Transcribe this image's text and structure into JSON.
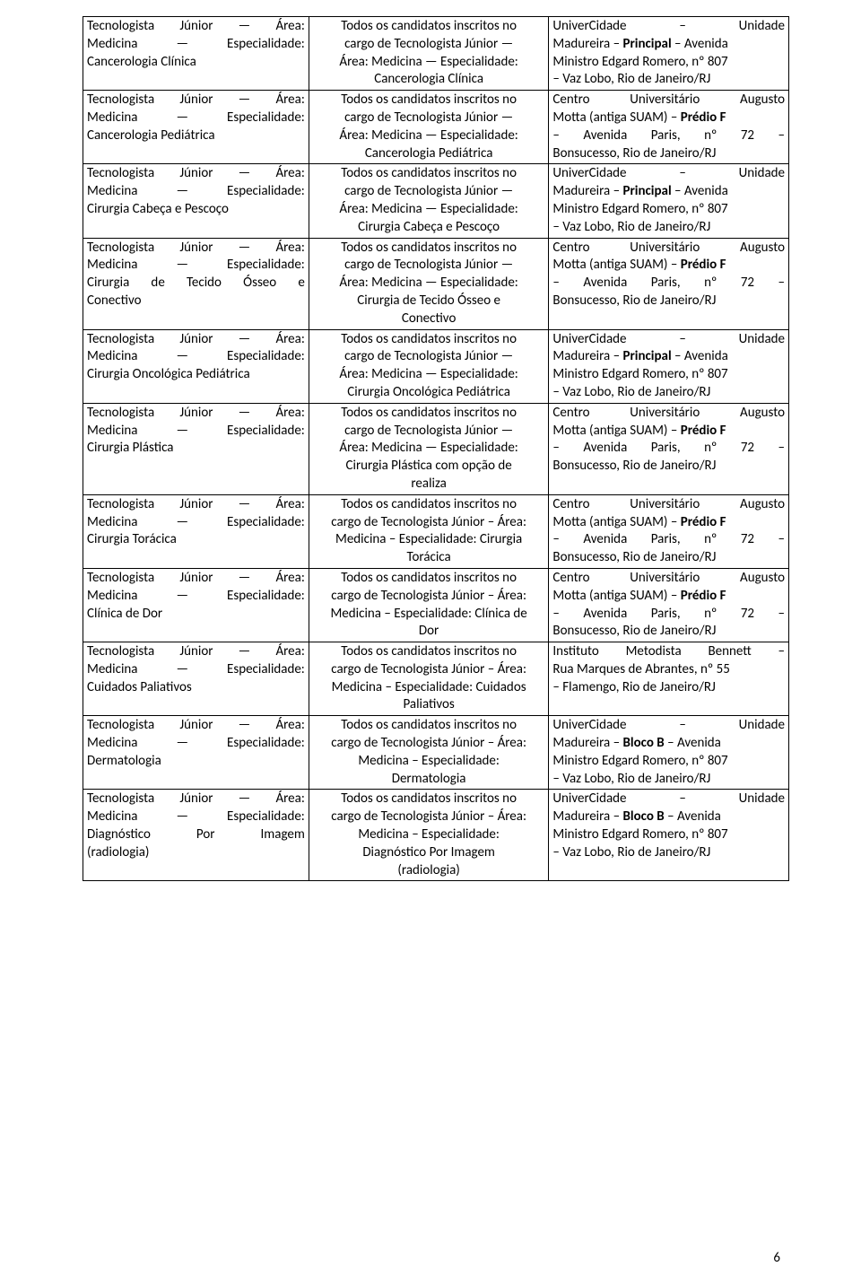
{
  "page_number": "6",
  "rows": [
    {
      "col1": [
        {
          "text": "Tecnologista Júnior — Área:",
          "just": true
        },
        {
          "text": "Medicina — Especialidade:",
          "just": true
        },
        {
          "text": "Cancerologia Clínica"
        }
      ],
      "col2": [
        {
          "text": "Todos os candidatos inscritos no"
        },
        {
          "text": "cargo de Tecnologista Júnior —"
        },
        {
          "text": "Área: Medicina — Especialidade:"
        },
        {
          "text": "Cancerologia Clínica"
        }
      ],
      "col3": [
        {
          "html": "UniverCidade&nbsp;&nbsp;&nbsp;&nbsp;&nbsp;&nbsp;&nbsp;–&nbsp;&nbsp;&nbsp;&nbsp;&nbsp;&nbsp;&nbsp;Unidade",
          "just": true
        },
        {
          "html": "Madureira – <b>Principal</b> – Avenida"
        },
        {
          "text": "Ministro Edgard Romero, nº 807"
        },
        {
          "text": "– Vaz Lobo, Rio de Janeiro/RJ"
        }
      ]
    },
    {
      "col1": [
        {
          "text": "Tecnologista Júnior — Área:",
          "just": true
        },
        {
          "text": "Medicina — Especialidade:",
          "just": true
        },
        {
          "text": "Cancerologia Pediátrica"
        }
      ],
      "col2": [
        {
          "text": "Todos os candidatos inscritos no"
        },
        {
          "text": "cargo de Tecnologista Júnior —"
        },
        {
          "text": "Área: Medicina — Especialidade:"
        },
        {
          "text": "Cancerologia Pediátrica"
        }
      ],
      "col3": [
        {
          "text": "Centro   Universitário   Augusto",
          "just": true
        },
        {
          "html": "Motta (antiga SUAM) – <b>Prédio F</b>"
        },
        {
          "text": "–   Avenida   Paris,   nº   72   –",
          "just": true
        },
        {
          "text": "Bonsucesso, Rio de Janeiro/RJ"
        }
      ]
    },
    {
      "col1": [
        {
          "text": "Tecnologista Júnior — Área:",
          "just": true
        },
        {
          "text": "Medicina — Especialidade:",
          "just": true
        },
        {
          "text": "Cirurgia Cabeça e Pescoço"
        }
      ],
      "col2": [
        {
          "text": "Todos os candidatos inscritos no"
        },
        {
          "text": "cargo de Tecnologista Júnior —"
        },
        {
          "text": "Área: Medicina — Especialidade:"
        },
        {
          "text": "Cirurgia Cabeça e Pescoço"
        }
      ],
      "col3": [
        {
          "html": "UniverCidade&nbsp;&nbsp;&nbsp;&nbsp;&nbsp;&nbsp;&nbsp;–&nbsp;&nbsp;&nbsp;&nbsp;&nbsp;&nbsp;&nbsp;Unidade",
          "just": true
        },
        {
          "html": "Madureira – <b>Principal</b> – Avenida"
        },
        {
          "text": "Ministro Edgard Romero, nº 807"
        },
        {
          "text": "– Vaz Lobo, Rio de Janeiro/RJ"
        }
      ]
    },
    {
      "col1": [
        {
          "text": "Tecnologista Júnior — Área:",
          "just": true
        },
        {
          "text": "Medicina — Especialidade:",
          "just": true
        },
        {
          "text": "Cirurgia de Tecido Ósseo e",
          "just": true
        },
        {
          "text": "Conectivo"
        }
      ],
      "col2": [
        {
          "text": "Todos os candidatos inscritos no"
        },
        {
          "text": "cargo de Tecnologista Júnior —"
        },
        {
          "text": "Área: Medicina — Especialidade:"
        },
        {
          "text": "Cirurgia de Tecido Ósseo e"
        },
        {
          "text": "Conectivo"
        }
      ],
      "col3": [
        {
          "text": "Centro   Universitário   Augusto",
          "just": true
        },
        {
          "html": "Motta (antiga SUAM) – <b>Prédio F</b>"
        },
        {
          "text": "–   Avenida   Paris,   nº   72   –",
          "just": true
        },
        {
          "text": "Bonsucesso, Rio de Janeiro/RJ"
        }
      ]
    },
    {
      "col1": [
        {
          "text": "Tecnologista Júnior — Área:",
          "just": true
        },
        {
          "text": "Medicina — Especialidade:",
          "just": true
        },
        {
          "text": "Cirurgia Oncológica Pediátrica"
        }
      ],
      "col2": [
        {
          "text": "Todos os candidatos inscritos no"
        },
        {
          "text": "cargo de Tecnologista Júnior —"
        },
        {
          "text": "Área: Medicina — Especialidade:"
        },
        {
          "text": "Cirurgia Oncológica Pediátrica"
        }
      ],
      "col3": [
        {
          "html": "UniverCidade&nbsp;&nbsp;&nbsp;&nbsp;&nbsp;&nbsp;&nbsp;–&nbsp;&nbsp;&nbsp;&nbsp;&nbsp;&nbsp;&nbsp;Unidade",
          "just": true
        },
        {
          "html": "Madureira – <b>Principal</b> – Avenida"
        },
        {
          "text": "Ministro Edgard Romero, nº 807"
        },
        {
          "text": "– Vaz Lobo, Rio de Janeiro/RJ"
        }
      ]
    },
    {
      "col1": [
        {
          "text": "Tecnologista Júnior — Área:",
          "just": true
        },
        {
          "text": "Medicina — Especialidade:",
          "just": true
        },
        {
          "text": "Cirurgia Plástica"
        }
      ],
      "col2": [
        {
          "text": "Todos os candidatos inscritos no"
        },
        {
          "text": "cargo de Tecnologista Júnior —"
        },
        {
          "text": "Área: Medicina — Especialidade:"
        },
        {
          "text": "Cirurgia Plástica com opção de"
        },
        {
          "text": "realiza"
        }
      ],
      "col3": [
        {
          "text": "Centro   Universitário   Augusto",
          "just": true
        },
        {
          "html": "Motta (antiga SUAM) – <b>Prédio F</b>"
        },
        {
          "text": "–   Avenida   Paris,   nº   72   –",
          "just": true
        },
        {
          "text": "Bonsucesso, Rio de Janeiro/RJ"
        }
      ]
    },
    {
      "col1": [
        {
          "text": "Tecnologista Júnior — Área:",
          "just": true
        },
        {
          "text": "Medicina — Especialidade:",
          "just": true
        },
        {
          "text": "Cirurgia Torácica"
        }
      ],
      "col2": [
        {
          "text": "Todos os candidatos inscritos no"
        },
        {
          "text": "cargo de Tecnologista Júnior – Área:"
        },
        {
          "text": "Medicina – Especialidade: Cirurgia"
        },
        {
          "text": "Torácica"
        }
      ],
      "col3": [
        {
          "text": "Centro   Universitário   Augusto",
          "just": true
        },
        {
          "html": "Motta (antiga SUAM) – <b>Prédio F</b>"
        },
        {
          "text": "–   Avenida   Paris,   nº   72   –",
          "just": true
        },
        {
          "text": "Bonsucesso, Rio de Janeiro/RJ"
        }
      ]
    },
    {
      "col1": [
        {
          "text": "Tecnologista Júnior — Área:",
          "just": true
        },
        {
          "text": "Medicina — Especialidade:",
          "just": true
        },
        {
          "text": "Clínica de Dor"
        }
      ],
      "col2": [
        {
          "text": "Todos os candidatos inscritos no"
        },
        {
          "text": "cargo de Tecnologista Júnior – Área:"
        },
        {
          "text": "Medicina – Especialidade: Clínica de"
        },
        {
          "text": "Dor"
        }
      ],
      "col3": [
        {
          "text": "Centro   Universitário   Augusto",
          "just": true
        },
        {
          "html": "Motta (antiga SUAM) – <b>Prédio F</b>"
        },
        {
          "text": "–   Avenida   Paris,   nº   72   –",
          "just": true
        },
        {
          "text": "Bonsucesso, Rio de Janeiro/RJ"
        }
      ]
    },
    {
      "col1": [
        {
          "text": "Tecnologista Júnior — Área:",
          "just": true
        },
        {
          "text": "Medicina — Especialidade:",
          "just": true
        },
        {
          "text": "Cuidados Paliativos"
        }
      ],
      "col2": [
        {
          "text": "Todos os candidatos inscritos no"
        },
        {
          "text": "cargo de Tecnologista Júnior – Área:"
        },
        {
          "text": "Medicina – Especialidade: Cuidados"
        },
        {
          "text": "Paliativos"
        }
      ],
      "col3": [
        {
          "text": "Instituto  Metodista  Bennett  –",
          "just": true
        },
        {
          "text": "Rua Marques de Abrantes, nº 55"
        },
        {
          "text": "– Flamengo, Rio de Janeiro/RJ"
        }
      ]
    },
    {
      "col1": [
        {
          "text": "Tecnologista Júnior — Área:",
          "just": true
        },
        {
          "text": "Medicina — Especialidade:",
          "just": true
        },
        {
          "text": "Dermatologia"
        }
      ],
      "col2": [
        {
          "text": "Todos os candidatos inscritos no"
        },
        {
          "text": "cargo de Tecnologista Júnior – Área:"
        },
        {
          "text": "Medicina – Especialidade:"
        },
        {
          "text": "Dermatologia"
        }
      ],
      "col3": [
        {
          "html": "UniverCidade&nbsp;&nbsp;&nbsp;&nbsp;&nbsp;&nbsp;&nbsp;–&nbsp;&nbsp;&nbsp;&nbsp;&nbsp;&nbsp;&nbsp;Unidade",
          "just": true
        },
        {
          "html": "Madureira – <b>Bloco B</b> – Avenida"
        },
        {
          "text": "Ministro Edgard Romero, nº 807"
        },
        {
          "text": "– Vaz Lobo, Rio de Janeiro/RJ"
        }
      ]
    },
    {
      "col1": [
        {
          "text": "Tecnologista Júnior — Área:",
          "just": true
        },
        {
          "text": "Medicina — Especialidade:",
          "just": true
        },
        {
          "text": "Diagnóstico   Por   Imagem",
          "just": true
        },
        {
          "text": "(radiologia)"
        }
      ],
      "col2": [
        {
          "text": "Todos os candidatos inscritos no"
        },
        {
          "text": "cargo de Tecnologista Júnior – Área:"
        },
        {
          "text": "Medicina – Especialidade:"
        },
        {
          "text": "Diagnóstico Por Imagem"
        },
        {
          "text": "(radiologia)"
        }
      ],
      "col3": [
        {
          "html": "UniverCidade&nbsp;&nbsp;&nbsp;&nbsp;&nbsp;&nbsp;&nbsp;–&nbsp;&nbsp;&nbsp;&nbsp;&nbsp;&nbsp;&nbsp;Unidade",
          "just": true
        },
        {
          "html": "Madureira – <b>Bloco B</b> – Avenida"
        },
        {
          "text": "Ministro Edgard Romero, nº 807"
        },
        {
          "text": "– Vaz Lobo, Rio de Janeiro/RJ"
        }
      ]
    }
  ]
}
